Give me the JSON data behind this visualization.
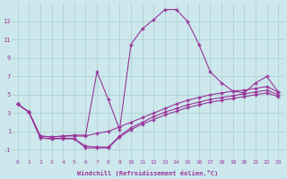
{
  "xlabel": "Windchill (Refroidissement éolien,°C)",
  "ylabel": "",
  "bg_color": "#cce8ec",
  "line_color": "#993399",
  "grid_color": "#aacccc",
  "xlim": [
    -0.5,
    23.5
  ],
  "ylim": [
    -2,
    15
  ],
  "xticks": [
    0,
    1,
    2,
    3,
    4,
    5,
    6,
    7,
    8,
    9,
    10,
    11,
    12,
    13,
    14,
    15,
    16,
    17,
    18,
    19,
    20,
    21,
    22,
    23
  ],
  "yticks": [
    -1,
    1,
    3,
    5,
    7,
    9,
    11,
    13
  ],
  "line1_x": [
    0,
    1,
    2,
    3,
    4,
    5,
    6,
    7,
    8,
    9,
    10,
    11,
    12,
    13,
    14,
    15,
    16,
    17,
    18,
    19,
    20,
    21,
    22,
    23
  ],
  "line1_y": [
    4.0,
    3.1,
    0.5,
    0.4,
    0.5,
    0.6,
    0.6,
    7.5,
    4.5,
    1.2,
    10.5,
    12.2,
    13.2,
    14.3,
    14.3,
    13.0,
    10.5,
    7.5,
    6.3,
    5.4,
    5.2,
    6.3,
    7.0,
    5.3
  ],
  "line2_x": [
    0,
    1,
    2,
    3,
    4,
    5,
    6,
    7,
    8,
    9,
    10,
    11,
    12,
    13,
    14,
    15,
    16,
    17,
    18,
    19,
    20,
    21,
    22,
    23
  ],
  "line2_y": [
    4.0,
    3.1,
    0.5,
    0.4,
    0.5,
    0.5,
    0.5,
    0.8,
    1.0,
    1.5,
    2.0,
    2.5,
    3.0,
    3.5,
    4.0,
    4.4,
    4.7,
    5.0,
    5.2,
    5.4,
    5.5,
    5.7,
    5.9,
    5.3
  ],
  "line3_x": [
    0,
    1,
    2,
    3,
    4,
    5,
    6,
    7,
    8,
    9,
    10,
    11,
    12,
    13,
    14,
    15,
    16,
    17,
    18,
    19,
    20,
    21,
    22,
    23
  ],
  "line3_y": [
    4.0,
    3.1,
    0.3,
    0.2,
    0.3,
    0.2,
    -0.6,
    -0.7,
    -0.7,
    0.5,
    1.4,
    2.0,
    2.6,
    3.1,
    3.5,
    3.9,
    4.2,
    4.5,
    4.7,
    4.9,
    5.1,
    5.3,
    5.5,
    5.0
  ],
  "line4_x": [
    0,
    1,
    2,
    3,
    4,
    5,
    6,
    7,
    8,
    9,
    10,
    11,
    12,
    13,
    14,
    15,
    16,
    17,
    18,
    19,
    20,
    21,
    22,
    23
  ],
  "line4_y": [
    4.0,
    3.1,
    0.3,
    0.2,
    0.2,
    0.2,
    -0.8,
    -0.8,
    -0.8,
    0.4,
    1.2,
    1.8,
    2.3,
    2.8,
    3.2,
    3.6,
    3.9,
    4.2,
    4.4,
    4.6,
    4.8,
    5.0,
    5.2,
    4.8
  ]
}
